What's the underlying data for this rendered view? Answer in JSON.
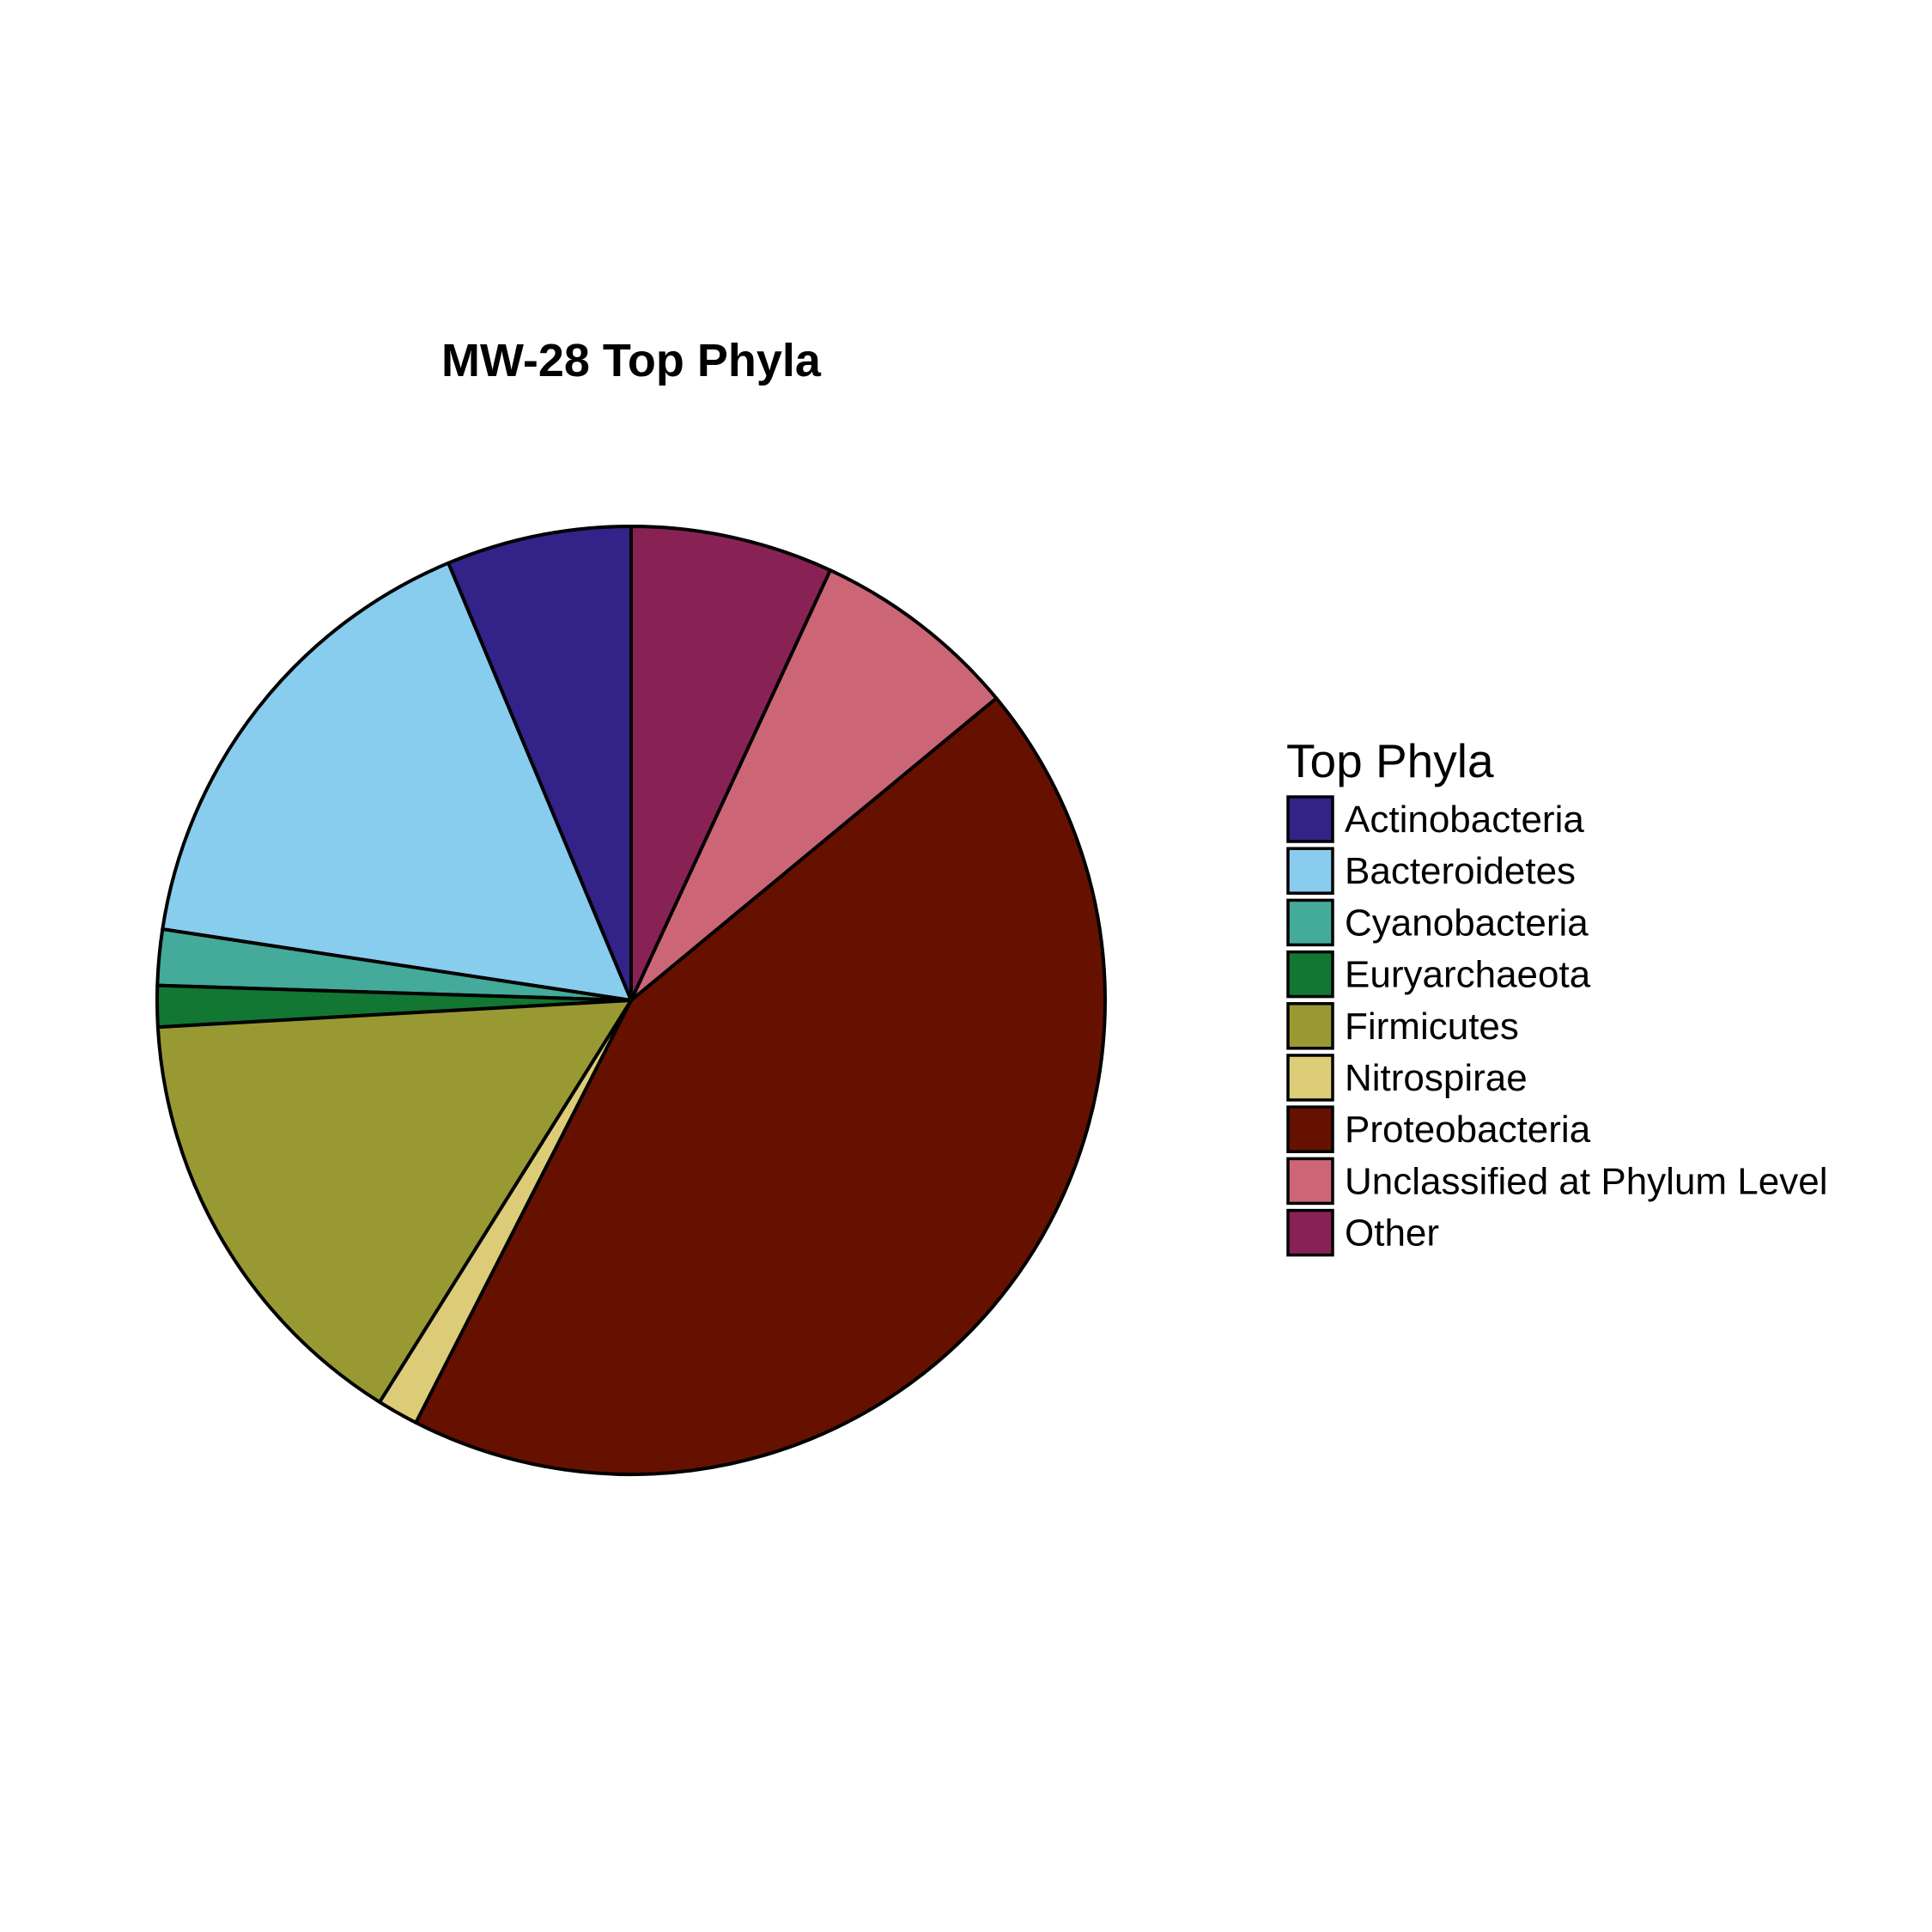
{
  "chart_data": {
    "type": "pie",
    "title": "MW-28 Top Phyla",
    "legend_title": "Top Phyla",
    "legend_position": "right",
    "slices": [
      {
        "label": "Actinobacteria",
        "value": 6.3,
        "color": "#332288"
      },
      {
        "label": "Bacteroidetes",
        "value": 16.3,
        "color": "#88CCEE"
      },
      {
        "label": "Cyanobacteria",
        "value": 1.9,
        "color": "#44AA99"
      },
      {
        "label": "Euryarchaeota",
        "value": 1.4,
        "color": "#117733"
      },
      {
        "label": "Firmicutes",
        "value": 15.2,
        "color": "#999933"
      },
      {
        "label": "Nitrospirae",
        "value": 1.4,
        "color": "#DDCC77"
      },
      {
        "label": "Proteobacteria",
        "value": 43.5,
        "color": "#661100"
      },
      {
        "label": "Unclassified at Phylum Level",
        "value": 7.1,
        "color": "#CC6677"
      },
      {
        "label": "Other",
        "value": 6.9,
        "color": "#882255"
      }
    ]
  }
}
